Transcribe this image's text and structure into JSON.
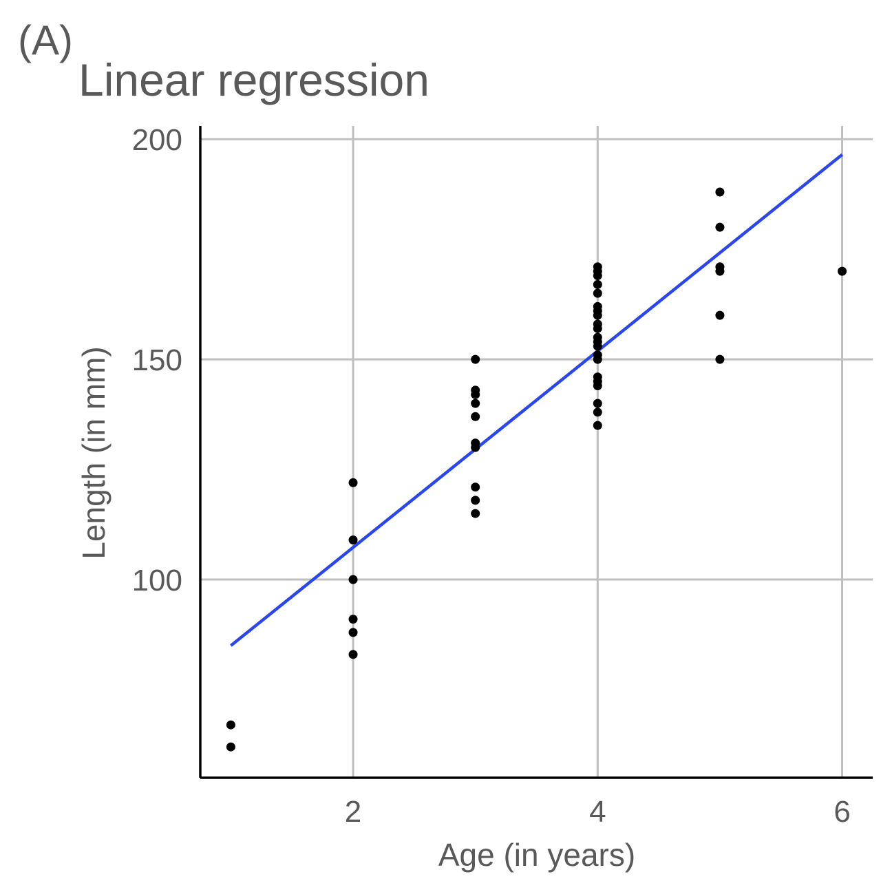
{
  "panel_label": "(A)",
  "chart_data": {
    "type": "scatter",
    "title": "Linear regression",
    "xlabel": "Age (in years)",
    "ylabel": "Length (in mm)",
    "xlim": [
      0.75,
      6.25
    ],
    "ylim": [
      55,
      203
    ],
    "x_ticks": [
      2,
      4,
      6
    ],
    "x_tick_labels": [
      "2",
      "4",
      "6"
    ],
    "y_ticks": [
      100,
      150,
      200
    ],
    "y_tick_labels": [
      "100",
      "150",
      "200"
    ],
    "grid": true,
    "colors": {
      "points": "#000000",
      "fit_line": "#2a46f0",
      "grid": "#bfbfbf",
      "text": "#595959"
    },
    "points": [
      [
        1,
        67
      ],
      [
        1,
        62
      ],
      [
        2,
        122
      ],
      [
        2,
        109
      ],
      [
        2,
        100
      ],
      [
        2,
        91
      ],
      [
        2,
        88
      ],
      [
        2,
        83
      ],
      [
        3,
        150
      ],
      [
        3,
        143
      ],
      [
        3,
        142
      ],
      [
        3,
        140
      ],
      [
        3,
        137
      ],
      [
        3,
        131
      ],
      [
        3,
        130
      ],
      [
        3,
        121
      ],
      [
        3,
        118
      ],
      [
        3,
        115
      ],
      [
        4,
        171
      ],
      [
        4,
        170
      ],
      [
        4,
        169
      ],
      [
        4,
        167
      ],
      [
        4,
        165
      ],
      [
        4,
        162
      ],
      [
        4,
        161
      ],
      [
        4,
        160
      ],
      [
        4,
        158
      ],
      [
        4,
        157
      ],
      [
        4,
        155
      ],
      [
        4,
        154
      ],
      [
        4,
        153
      ],
      [
        4,
        151
      ],
      [
        4,
        150
      ],
      [
        4,
        146
      ],
      [
        4,
        145
      ],
      [
        4,
        144
      ],
      [
        4,
        140
      ],
      [
        4,
        138
      ],
      [
        4,
        135
      ],
      [
        5,
        188
      ],
      [
        5,
        180
      ],
      [
        5,
        171
      ],
      [
        5,
        170
      ],
      [
        5,
        160
      ],
      [
        5,
        150
      ],
      [
        6,
        170
      ]
    ],
    "fit_line": {
      "x": [
        1,
        6
      ],
      "y": [
        85,
        196.5
      ]
    }
  }
}
